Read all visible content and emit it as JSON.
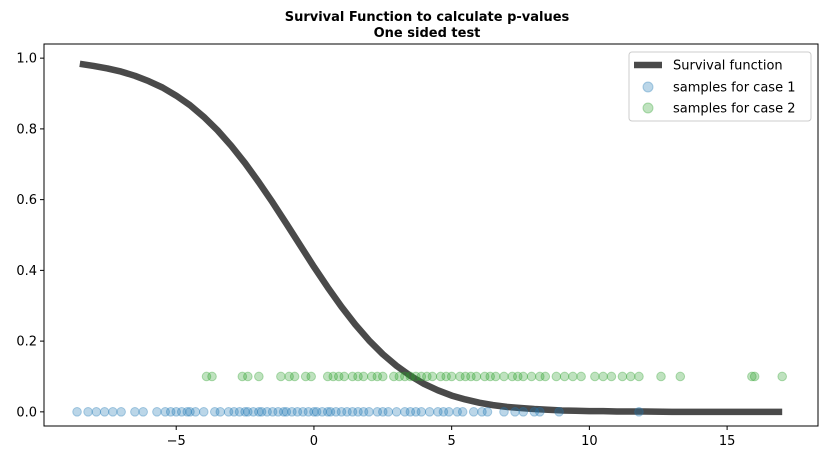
{
  "chart_data": {
    "type": "scatter",
    "title": "Survival Function to calculate p-values",
    "subtitle": "One sided test",
    "xlabel": "",
    "ylabel": "",
    "xlim": [
      -9.8,
      18.3
    ],
    "ylim": [
      -0.04,
      1.04
    ],
    "x_ticks": [
      -5,
      0,
      5,
      10,
      15
    ],
    "y_ticks": [
      0.0,
      0.2,
      0.4,
      0.6,
      0.8,
      1.0
    ],
    "x_tick_labels": [
      "−5",
      "0",
      "5",
      "10",
      "15"
    ],
    "y_tick_labels": [
      "0.0",
      "0.2",
      "0.4",
      "0.6",
      "0.8",
      "1.0"
    ],
    "grid": false,
    "legend_position": "top-right",
    "survival_function": {
      "name": "Survival function",
      "color": "#4a4a4a",
      "x": [
        -8.5,
        -8.0,
        -7.5,
        -7.0,
        -6.5,
        -6.0,
        -5.5,
        -5.0,
        -4.5,
        -4.0,
        -3.5,
        -3.0,
        -2.5,
        -2.0,
        -1.5,
        -1.0,
        -0.5,
        0.0,
        0.5,
        1.0,
        1.5,
        2.0,
        2.5,
        3.0,
        3.5,
        4.0,
        4.5,
        5.0,
        5.5,
        6.0,
        6.5,
        7.0,
        7.5,
        8.0,
        8.5,
        9.0,
        9.5,
        10.0,
        10.5,
        11.0,
        11.5,
        12.0,
        13.0,
        14.0,
        15.0,
        16.0,
        17.0
      ],
      "y": [
        0.984,
        0.978,
        0.971,
        0.962,
        0.95,
        0.935,
        0.917,
        0.894,
        0.867,
        0.834,
        0.796,
        0.752,
        0.703,
        0.649,
        0.592,
        0.532,
        0.471,
        0.41,
        0.352,
        0.297,
        0.247,
        0.202,
        0.163,
        0.13,
        0.102,
        0.079,
        0.061,
        0.046,
        0.035,
        0.026,
        0.019,
        0.014,
        0.011,
        0.008,
        0.006,
        0.004,
        0.003,
        0.002,
        0.002,
        0.001,
        0.001,
        0.001,
        0.0,
        0.0,
        0.0,
        0.0,
        0.0
      ]
    },
    "series": [
      {
        "name": "samples for case 1",
        "color": "#1f77b4",
        "y": 0.0,
        "x": [
          -8.6,
          -8.2,
          -7.9,
          -7.6,
          -7.3,
          -7.0,
          -6.5,
          -6.2,
          -5.7,
          -5.4,
          -5.2,
          -5.0,
          -4.8,
          -4.6,
          -4.5,
          -4.3,
          -4.0,
          -3.6,
          -3.4,
          -3.1,
          -2.9,
          -2.7,
          -2.5,
          -2.4,
          -2.2,
          -2.0,
          -1.9,
          -1.7,
          -1.5,
          -1.3,
          -1.1,
          -1.0,
          -0.8,
          -0.6,
          -0.4,
          -0.2,
          0.0,
          0.1,
          0.3,
          0.5,
          0.6,
          0.8,
          1.0,
          1.2,
          1.4,
          1.6,
          1.8,
          2.0,
          2.3,
          2.5,
          2.7,
          3.0,
          3.3,
          3.5,
          3.7,
          3.9,
          4.2,
          4.5,
          4.7,
          4.9,
          5.2,
          5.4,
          5.8,
          6.1,
          6.3,
          6.9,
          7.3,
          7.6,
          8.0,
          8.2,
          8.9,
          11.8
        ]
      },
      {
        "name": "samples for case 2",
        "color": "#2ca02c",
        "y": 0.1,
        "x": [
          -3.9,
          -3.7,
          -2.6,
          -2.4,
          -2.0,
          -1.2,
          -0.9,
          -0.7,
          -0.3,
          -0.1,
          0.5,
          0.7,
          0.9,
          1.1,
          1.4,
          1.6,
          1.8,
          2.1,
          2.3,
          2.5,
          2.9,
          3.1,
          3.3,
          3.5,
          3.7,
          3.9,
          4.1,
          4.3,
          4.6,
          4.8,
          5.0,
          5.3,
          5.5,
          5.7,
          5.9,
          6.2,
          6.4,
          6.6,
          6.9,
          7.2,
          7.4,
          7.6,
          7.9,
          8.2,
          8.4,
          8.8,
          9.1,
          9.4,
          9.7,
          10.2,
          10.5,
          10.8,
          11.2,
          11.5,
          11.8,
          12.6,
          13.3,
          15.9,
          16.0,
          17.0
        ]
      }
    ]
  }
}
